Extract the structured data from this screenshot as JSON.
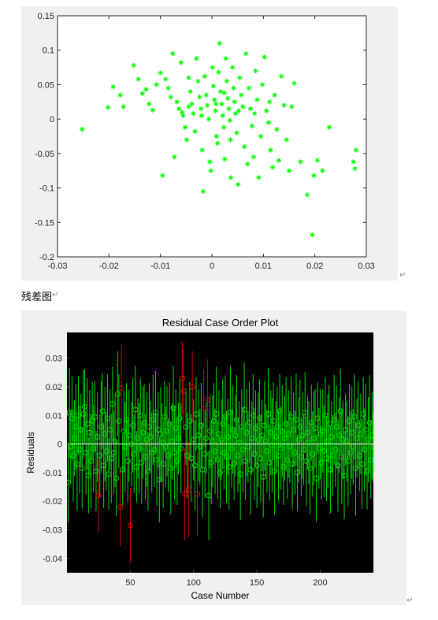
{
  "caption": "残差图",
  "para_mark": "↵",
  "chart_data": [
    {
      "type": "scatter",
      "title": "",
      "xlabel": "",
      "ylabel": "",
      "xlim": [
        -0.03,
        0.03
      ],
      "ylim": [
        -0.2,
        0.15
      ],
      "xticks": [
        -0.03,
        -0.02,
        -0.01,
        0,
        0.01,
        0.02,
        0.03
      ],
      "xtick_labels": [
        "-0.03",
        "-0.02",
        "-0.01",
        "0",
        "0.01",
        "0.02",
        "0.03"
      ],
      "yticks": [
        0.15,
        0.1,
        0.05,
        0,
        -0.05,
        -0.1,
        -0.15,
        -0.2
      ],
      "ytick_labels": [
        "0.15",
        "0.1",
        "0.05",
        "0",
        "-0.05",
        "-0.1",
        "-0.15",
        "-0.2"
      ],
      "marker": "*",
      "color": "#00ff00",
      "grid": false,
      "points": [
        [
          -0.0252,
          -0.015
        ],
        [
          -0.0202,
          0.017
        ],
        [
          -0.0192,
          0.047
        ],
        [
          -0.0178,
          0.035
        ],
        [
          -0.0172,
          0.018
        ],
        [
          -0.0152,
          0.078
        ],
        [
          -0.0143,
          0.058
        ],
        [
          -0.0135,
          0.037
        ],
        [
          -0.0128,
          0.043
        ],
        [
          -0.0122,
          0.022
        ],
        [
          -0.0115,
          0.013
        ],
        [
          -0.0108,
          0.05
        ],
        [
          -0.01,
          0.067
        ],
        [
          -0.0096,
          -0.082
        ],
        [
          -0.009,
          0.058
        ],
        [
          -0.0085,
          0.045
        ],
        [
          -0.008,
          0.032
        ],
        [
          -0.0076,
          0.095
        ],
        [
          -0.0073,
          -0.055
        ],
        [
          -0.0068,
          0.025
        ],
        [
          -0.0064,
          0.015
        ],
        [
          -0.006,
          0.082
        ],
        [
          -0.0056,
          0.005
        ],
        [
          -0.0052,
          -0.012
        ],
        [
          -0.0049,
          -0.03
        ],
        [
          -0.0045,
          0.06
        ],
        [
          -0.0042,
          0.04
        ],
        [
          -0.0039,
          0.022
        ],
        [
          -0.0036,
          0.008
        ],
        [
          -0.0033,
          -0.018
        ],
        [
          -0.003,
          0.088
        ],
        [
          -0.0027,
          0.055
        ],
        [
          -0.0024,
          0.032
        ],
        [
          -0.0021,
          0.015
        ],
        [
          -0.0019,
          -0.045
        ],
        [
          -0.0017,
          -0.105
        ],
        [
          -0.0014,
          0.062
        ],
        [
          -0.0011,
          0.035
        ],
        [
          -0.0009,
          0.02
        ],
        [
          -0.0006,
          0.0
        ],
        [
          -0.0004,
          -0.062
        ],
        [
          -0.0002,
          -0.075
        ],
        [
          0.0001,
          0.075
        ],
        [
          0.0003,
          0.048
        ],
        [
          0.0005,
          0.028
        ],
        [
          0.0007,
          0.012
        ],
        [
          0.0009,
          -0.025
        ],
        [
          0.0011,
          -0.035
        ],
        [
          0.0013,
          0.068
        ],
        [
          0.0015,
          0.11
        ],
        [
          0.0017,
          0.04
        ],
        [
          0.0019,
          0.022
        ],
        [
          0.0021,
          0.005
        ],
        [
          0.0023,
          -0.012
        ],
        [
          0.0025,
          -0.058
        ],
        [
          0.0027,
          0.088
        ],
        [
          0.0029,
          0.055
        ],
        [
          0.0031,
          0.03
        ],
        [
          0.0033,
          0.015
        ],
        [
          0.0035,
          -0.002
        ],
        [
          0.0037,
          -0.085
        ],
        [
          0.004,
          0.075
        ],
        [
          0.0042,
          0.045
        ],
        [
          0.0044,
          0.025
        ],
        [
          0.0046,
          0.008
        ],
        [
          0.0048,
          -0.02
        ],
        [
          0.0051,
          -0.095
        ],
        [
          0.0054,
          0.06
        ],
        [
          0.0057,
          0.035
        ],
        [
          0.006,
          0.018
        ],
        [
          0.0063,
          -0.04
        ],
        [
          0.0066,
          0.095
        ],
        [
          0.0069,
          -0.065
        ],
        [
          0.0072,
          0.045
        ],
        [
          0.0075,
          0.015
        ],
        [
          0.0078,
          -0.01
        ],
        [
          0.0081,
          -0.055
        ],
        [
          0.0085,
          0.07
        ],
        [
          0.0088,
          0.028
        ],
        [
          0.0091,
          -0.085
        ],
        [
          0.0095,
          -0.025
        ],
        [
          0.0098,
          0.05
        ],
        [
          0.0102,
          0.09
        ],
        [
          0.0106,
          0.012
        ],
        [
          0.011,
          -0.005
        ],
        [
          0.0114,
          -0.045
        ],
        [
          0.0118,
          -0.07
        ],
        [
          0.0122,
          0.035
        ],
        [
          0.0126,
          -0.015
        ],
        [
          0.013,
          -0.06
        ],
        [
          0.0135,
          0.062
        ],
        [
          0.014,
          0.02
        ],
        [
          0.0145,
          -0.03
        ],
        [
          0.015,
          -0.075
        ],
        [
          0.0155,
          0.018
        ],
        [
          0.016,
          0.052
        ],
        [
          0.0172,
          -0.062
        ],
        [
          0.0185,
          -0.11
        ],
        [
          0.0195,
          -0.168
        ],
        [
          0.0198,
          -0.082
        ],
        [
          0.0205,
          -0.06
        ],
        [
          0.0215,
          -0.075
        ],
        [
          0.0228,
          -0.012
        ],
        [
          0.0275,
          -0.062
        ],
        [
          0.028,
          -0.045
        ],
        [
          0.0278,
          -0.072
        ],
        [
          -0.0045,
          0.018
        ],
        [
          -0.002,
          0.005
        ],
        [
          0.0008,
          0.022
        ],
        [
          0.0024,
          0.038
        ],
        [
          0.0052,
          0.012
        ],
        [
          0.0083,
          0.008
        ],
        [
          0.0112,
          0.025
        ],
        [
          -0.0058,
          0.01
        ],
        [
          0.0036,
          -0.03
        ]
      ]
    },
    {
      "type": "scatter",
      "subtype": "residual-case-order",
      "title": "Residual Case Order Plot",
      "xlabel": "Case Number",
      "ylabel": "Residuals",
      "xlim": [
        0,
        242
      ],
      "ylim": [
        -0.045,
        0.039
      ],
      "xticks": [
        50,
        100,
        150,
        200
      ],
      "xtick_labels": [
        "50",
        "100",
        "150",
        "200"
      ],
      "yticks": [
        0.03,
        0.02,
        0.01,
        0,
        -0.01,
        -0.02,
        -0.03,
        -0.04
      ],
      "ytick_labels": [
        "0.03",
        "0.02",
        "0.01",
        "0",
        "-0.01",
        "-0.02",
        "-0.03",
        "-0.04"
      ],
      "background": "#000000",
      "inlier_color": "#00dd00",
      "outlier_color": "#dd0000",
      "zero_line_color": "#ffffff",
      "interval_halfwidth": 0.0145,
      "residuals": [
        -0.0135,
        0.011,
        -0.001,
        0.009,
        -0.004,
        0.002,
        0.006,
        -0.007,
        0.01,
        -0.002,
        0.005,
        -0.0085,
        0.0105,
        0.013,
        -0.003,
        0.007,
        -0.011,
        0.004,
        -0.006,
        0.008,
        -0.0015,
        0.0095,
        -0.0095,
        0.0025,
        -0.018,
        -0.004,
        0.006,
        0.0115,
        -0.0075,
        0.0035,
        -0.0025,
        0.009,
        -0.0105,
        0.005,
        -0.005,
        0.014,
        -0.003,
        0.001,
        -0.012,
        0.0175,
        0.008,
        -0.022,
        0.0195,
        -0.009,
        0.0045,
        -0.001,
        0.0085,
        -0.006,
        0.003,
        -0.0285,
        0.0,
        0.0065,
        -0.0035,
        0.012,
        -0.008,
        0.002,
        -0.0015,
        0.01,
        -0.0065,
        0.004,
        0.0075,
        -0.0045,
        0.0015,
        -0.0095,
        0.006,
        0.0025,
        -0.003,
        0.0085,
        -0.002,
        0.011,
        -0.0055,
        0.005,
        -0.0125,
        0.0035,
        0.0005,
        -0.007,
        0.0095,
        -0.001,
        0.0045,
        -0.004,
        0.007,
        -0.0085,
        0.001,
        0.0125,
        -0.003,
        0.0055,
        -0.006,
        0.002,
        0.009,
        -0.0015,
        0.023,
        0.0185,
        -0.0175,
        0.006,
        -0.004,
        -0.016,
        0.008,
        -0.005,
        0.02,
        0.0015,
        -0.0075,
        0.0105,
        -0.0175,
        0.003,
        -0.001,
        0.0065,
        -0.009,
        0.0125,
        -0.0035,
        0.002,
        0.0155,
        -0.018,
        0.0045,
        -0.0065,
        0.001,
        0.008,
        -0.0025,
        0.0105,
        -0.0055,
        0.0035,
        -0.01,
        0.0015,
        0.007,
        -0.003,
        0.0095,
        -0.0045,
        0.0025,
        -0.008,
        0.011,
        -0.0015,
        0.005,
        -0.007,
        0.003,
        0.0085,
        -0.004,
        0.0005,
        -0.0105,
        0.006,
        -0.002,
        0.012,
        -0.006,
        0.004,
        -0.001,
        0.0075,
        -0.009,
        0.002,
        0.01,
        -0.0035,
        0.0055,
        -0.0075,
        0.0015,
        0.009,
        -0.005,
        0.003,
        -0.0115,
        0.0065,
        0.001,
        -0.0025,
        0.0105,
        -0.0065,
        0.004,
        -0.0005,
        0.008,
        -0.0095,
        0.0025,
        0.006,
        -0.004,
        0.0115,
        -0.0015,
        0.0045,
        -0.008,
        0.002,
        0.007,
        -0.0055,
        0.0035,
        -0.001,
        0.0095,
        -0.007,
        0.005,
        -0.003,
        0.0085,
        -0.01,
        0.0015,
        0.006,
        -0.0045,
        0.003,
        -0.002,
        0.011,
        -0.006,
        0.004,
        0.0005,
        -0.0085,
        0.0075,
        -0.0035,
        0.002,
        0.0055,
        -0.012,
        0.009,
        -0.0015,
        0.0035,
        -0.0065,
        0.0045,
        -0.0025,
        0.01,
        -0.005,
        0.001,
        0.007,
        -0.009,
        0.0025,
        -0.004,
        0.0085,
        -0.002,
        0.006,
        -0.0075,
        0.003,
        0.0115,
        -0.0045,
        0.0015,
        -0.011,
        0.005,
        0.001,
        -0.006,
        0.008,
        -0.003,
        0.004,
        -0.001,
        0.0095,
        -0.0085,
        0.002,
        0.0065,
        -0.004,
        0.0035,
        -0.007,
        0.0105,
        -0.002,
        0.005,
        -0.0095,
        0.0015,
        0.0075,
        -0.0055,
        0.003,
        -0.001
      ],
      "outlier_cases": [
        25,
        42,
        43,
        50,
        91,
        92,
        93,
        96,
        99,
        103,
        108,
        111
      ]
    }
  ]
}
